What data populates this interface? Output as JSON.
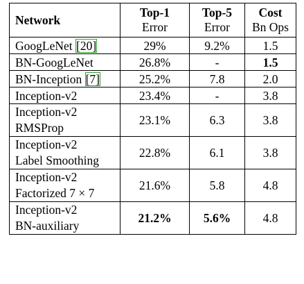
{
  "table": {
    "headers": {
      "network": "Network",
      "top1": {
        "line1": "Top-1",
        "line2": "Error"
      },
      "top5": {
        "line1": "Top-5",
        "line2": "Error"
      },
      "cost": {
        "line1": "Cost",
        "line2": "Bn Ops"
      }
    },
    "rows": [
      {
        "name1": "GoogLeNet ",
        "cite": "[20]",
        "name2": "",
        "top1": "29%",
        "top5": "9.2%",
        "cost": "1.5"
      },
      {
        "name1": "BN-GoogLeNet",
        "cite": "",
        "name2": "",
        "top1": "26.8%",
        "top5": "-",
        "cost": "1.5"
      },
      {
        "name1": "BN-Inception ",
        "cite": "[7]",
        "name2": "",
        "top1": "25.2%",
        "top5": "7.8",
        "cost": "2.0"
      },
      {
        "name1": "Inception-v2",
        "cite": "",
        "name2": "",
        "top1": "23.4%",
        "top5": "-",
        "cost": "3.8"
      },
      {
        "name1": "Inception-v2",
        "cite": "",
        "name2": "RMSProp",
        "top1": "23.1%",
        "top5": "6.3",
        "cost": "3.8"
      },
      {
        "name1": "Inception-v2",
        "cite": "",
        "name2": "Label Smoothing",
        "top1": "22.8%",
        "top5": "6.1",
        "cost": "3.8"
      },
      {
        "name1": "Inception-v2",
        "cite": "",
        "name2": "Factorized 7 × 7",
        "top1": "21.6%",
        "top5": "5.8",
        "cost": "4.8"
      },
      {
        "name1": "Inception-v2",
        "cite": "",
        "name2": "BN-auxiliary",
        "top1": "21.2%",
        "top5": "5.6%",
        "cost": "4.8"
      }
    ]
  }
}
